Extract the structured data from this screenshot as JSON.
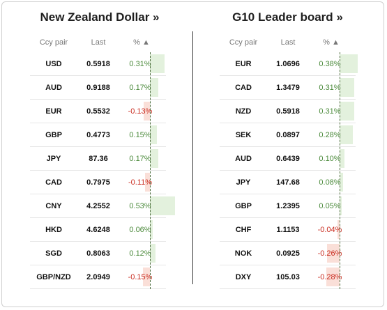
{
  "left_panel": {
    "title": "New Zealand Dollar »",
    "headers": {
      "pair": "Ccy pair",
      "last": "Last",
      "pct": "% ▲"
    },
    "rows": [
      {
        "pair": "USD",
        "last": "0.5918",
        "pct": "0.31%",
        "value": 0.31
      },
      {
        "pair": "AUD",
        "last": "0.9188",
        "pct": "0.17%",
        "value": 0.17
      },
      {
        "pair": "EUR",
        "last": "0.5532",
        "pct": "-0.13%",
        "value": -0.13
      },
      {
        "pair": "GBP",
        "last": "0.4773",
        "pct": "0.15%",
        "value": 0.15
      },
      {
        "pair": "JPY",
        "last": "87.36",
        "pct": "0.17%",
        "value": 0.17
      },
      {
        "pair": "CAD",
        "last": "0.7975",
        "pct": "-0.11%",
        "value": -0.11
      },
      {
        "pair": "CNY",
        "last": "4.2552",
        "pct": "0.53%",
        "value": 0.53
      },
      {
        "pair": "HKD",
        "last": "4.6248",
        "pct": "0.06%",
        "value": 0.06
      },
      {
        "pair": "SGD",
        "last": "0.8063",
        "pct": "0.12%",
        "value": 0.12
      },
      {
        "pair": "GBP/NZD",
        "last": "2.0949",
        "pct": "-0.15%",
        "value": -0.15
      }
    ]
  },
  "right_panel": {
    "title": "G10 Leader board »",
    "headers": {
      "pair": "Ccy pair",
      "last": "Last",
      "pct": "% ▲"
    },
    "rows": [
      {
        "pair": "EUR",
        "last": "1.0696",
        "pct": "0.38%",
        "value": 0.38
      },
      {
        "pair": "CAD",
        "last": "1.3479",
        "pct": "0.31%",
        "value": 0.31
      },
      {
        "pair": "NZD",
        "last": "0.5918",
        "pct": "0.31%",
        "value": 0.31
      },
      {
        "pair": "SEK",
        "last": "0.0897",
        "pct": "0.28%",
        "value": 0.28
      },
      {
        "pair": "AUD",
        "last": "0.6439",
        "pct": "0.10%",
        "value": 0.1
      },
      {
        "pair": "JPY",
        "last": "147.68",
        "pct": "0.08%",
        "value": 0.08
      },
      {
        "pair": "GBP",
        "last": "1.2395",
        "pct": "0.05%",
        "value": 0.05
      },
      {
        "pair": "CHF",
        "last": "1.1153",
        "pct": "-0.04%",
        "value": -0.04
      },
      {
        "pair": "NOK",
        "last": "0.0925",
        "pct": "-0.26%",
        "value": -0.26
      },
      {
        "pair": "DXY",
        "last": "105.03",
        "pct": "-0.28%",
        "value": -0.28
      }
    ]
  },
  "colors": {
    "positive_bar": "#e3f1dd",
    "negative_bar": "#fadfd8",
    "positive_text": "#4b8a3b",
    "negative_text": "#c92a1e"
  }
}
